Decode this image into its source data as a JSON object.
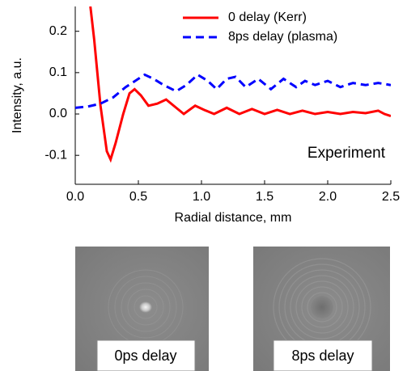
{
  "chart_data": {
    "type": "line",
    "xlabel": "Radial distance, mm",
    "ylabel": "Intensity, a.u.",
    "annotation": "Experiment",
    "xlim": [
      0,
      2.5
    ],
    "ylim": [
      -0.17,
      0.26
    ],
    "xticks": [
      {
        "value": 0,
        "label": "0.0"
      },
      0.5,
      {
        "value": 1,
        "label": "1.0"
      },
      1.5,
      {
        "value": 2,
        "label": "2.0"
      },
      2.5
    ],
    "yticks": [
      -0.1,
      {
        "value": 0,
        "label": "0.0"
      },
      0.1,
      0.2
    ],
    "legend": "upper right",
    "series": [
      {
        "name": "0 delay (Kerr)",
        "color": "#ff0000",
        "dash": "solid",
        "x": [
          0.12,
          0.15,
          0.2,
          0.25,
          0.28,
          0.32,
          0.38,
          0.43,
          0.47,
          0.52,
          0.58,
          0.65,
          0.72,
          0.8,
          0.86,
          0.95,
          1.02,
          1.1,
          1.2,
          1.3,
          1.4,
          1.5,
          1.6,
          1.7,
          1.8,
          1.9,
          2.0,
          2.1,
          2.2,
          2.3,
          2.4,
          2.45,
          2.5
        ],
        "values": [
          0.26,
          0.18,
          0.02,
          -0.09,
          -0.11,
          -0.07,
          0.0,
          0.05,
          0.06,
          0.045,
          0.02,
          0.025,
          0.035,
          0.015,
          0.0,
          0.02,
          0.01,
          0.0,
          0.015,
          0.0,
          0.012,
          0.0,
          0.01,
          0.0,
          0.008,
          0.0,
          0.005,
          0.0,
          0.005,
          0.002,
          0.008,
          0.0,
          -0.005
        ]
      },
      {
        "name": "8ps delay (plasma)",
        "color": "#0000ff",
        "dash": "dashed",
        "x": [
          0.0,
          0.1,
          0.2,
          0.3,
          0.4,
          0.5,
          0.55,
          0.62,
          0.7,
          0.8,
          0.88,
          0.97,
          1.05,
          1.12,
          1.2,
          1.27,
          1.35,
          1.45,
          1.55,
          1.65,
          1.75,
          1.82,
          1.9,
          2.0,
          2.1,
          2.2,
          2.3,
          2.4,
          2.5
        ],
        "values": [
          0.015,
          0.018,
          0.025,
          0.04,
          0.065,
          0.085,
          0.095,
          0.085,
          0.07,
          0.055,
          0.07,
          0.095,
          0.08,
          0.06,
          0.085,
          0.09,
          0.065,
          0.085,
          0.06,
          0.085,
          0.065,
          0.08,
          0.07,
          0.08,
          0.065,
          0.075,
          0.07,
          0.075,
          0.07
        ]
      }
    ]
  },
  "images": [
    {
      "label": "0ps delay"
    },
    {
      "label": "8ps delay"
    }
  ]
}
